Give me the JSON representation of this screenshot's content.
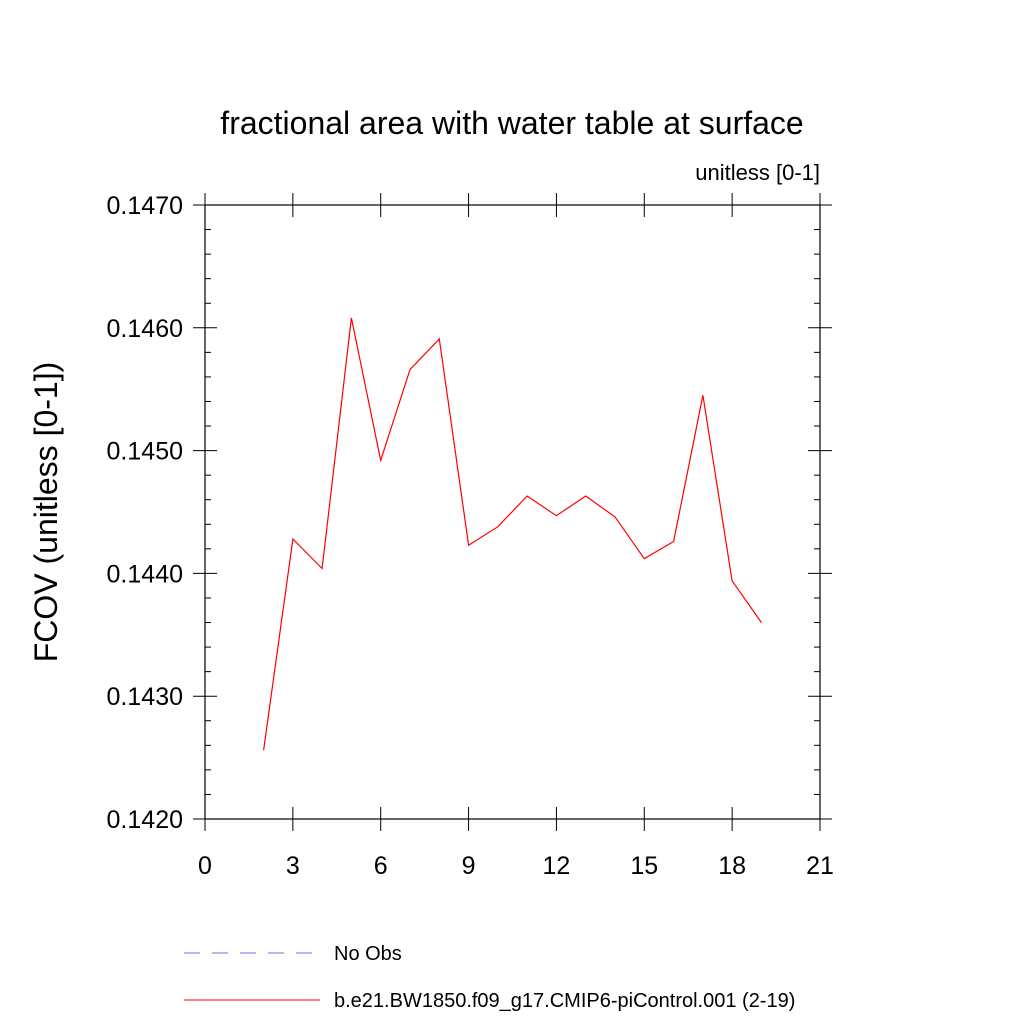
{
  "chart_data": {
    "type": "line",
    "title": "fractional area with water table at surface",
    "subtitle": "unitless [0-1]",
    "ylabel": "FCOV  (unitless [0-1])",
    "xlabel": "",
    "xlim": [
      0,
      21
    ],
    "ylim": [
      0.142,
      0.147
    ],
    "x_ticks": [
      0,
      3,
      6,
      9,
      12,
      15,
      18,
      21
    ],
    "x_tick_labels": [
      "0",
      "3",
      "6",
      "9",
      "12",
      "15",
      "18",
      "21"
    ],
    "y_ticks": [
      0.142,
      0.143,
      0.144,
      0.145,
      0.146,
      0.147
    ],
    "y_tick_labels": [
      "0.1420",
      "0.1430",
      "0.1440",
      "0.1450",
      "0.1460",
      "0.1470"
    ],
    "grid": false,
    "legend_position": "bottom",
    "series": [
      {
        "name": "No Obs",
        "color": "#7b68ee",
        "style": "dashed",
        "x": [],
        "values": []
      },
      {
        "name": "b.e21.BW1850.f09_g17.CMIP6-piControl.001 (2-19)",
        "color": "#ff0000",
        "style": "solid",
        "x": [
          2,
          3,
          4,
          5,
          6,
          7,
          8,
          9,
          10,
          11,
          12,
          13,
          14,
          15,
          16,
          17,
          18,
          19
        ],
        "values": [
          0.14256,
          0.14428,
          0.14404,
          0.14608,
          0.14492,
          0.14566,
          0.14591,
          0.14423,
          0.14438,
          0.14463,
          0.14447,
          0.14463,
          0.14446,
          0.14412,
          0.14426,
          0.14545,
          0.14394,
          0.1436
        ]
      }
    ]
  }
}
